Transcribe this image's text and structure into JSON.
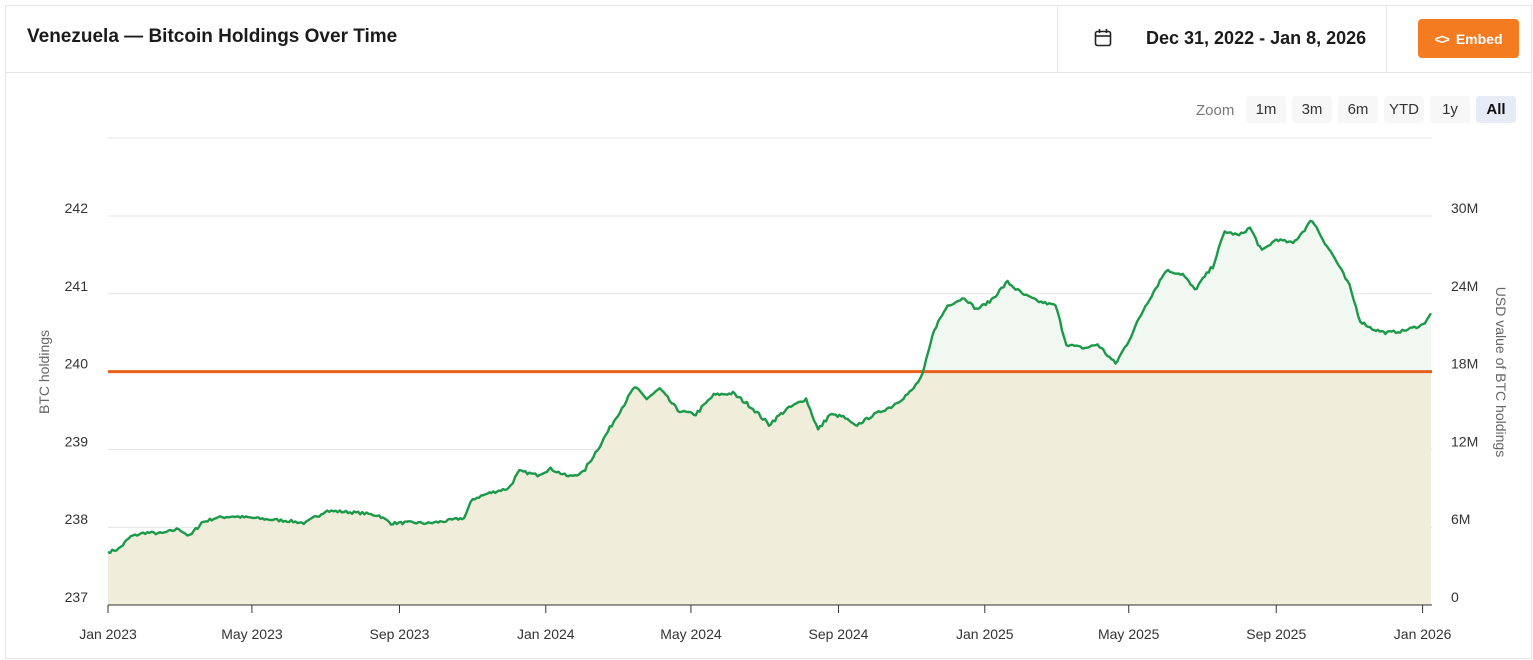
{
  "header": {
    "title": "Venezuela — Bitcoin Holdings Over Time",
    "date_range": "Dec 31, 2022 - Jan 8, 2026",
    "embed_label": "Embed",
    "calendar_icon": "calendar-icon",
    "embed_icon": "code-icon"
  },
  "zoom": {
    "label": "Zoom",
    "options": [
      "1m",
      "3m",
      "6m",
      "YTD",
      "1y",
      "All"
    ],
    "active": "All"
  },
  "colors": {
    "accent": "#f47b20",
    "line": "#1a9a48",
    "threshold": "#e8601c",
    "fill_below": "#fdf3e4",
    "fill_above": "#f1f7f1"
  },
  "chart_data": {
    "type": "line",
    "ylabel": "BTC holdings",
    "y2label": "USD value of BTC holdings",
    "ylim": [
      237,
      242
    ],
    "yticks": [
      "237",
      "238",
      "239",
      "240",
      "241",
      "242"
    ],
    "y2ticks": [
      "0",
      "6M",
      "12M",
      "18M",
      "24M",
      "30M"
    ],
    "xticks": [
      "Jan 2023",
      "May 2023",
      "Sep 2023",
      "Jan 2024",
      "May 2024",
      "Sep 2024",
      "Jan 2025",
      "May 2025",
      "Sep 2025",
      "Jan 2026"
    ],
    "threshold": 240,
    "grid": true,
    "series": [
      {
        "values": [
          [
            "2023-01-01",
            237.68
          ],
          [
            "2023-01-10",
            237.72
          ],
          [
            "2023-01-20",
            237.88
          ],
          [
            "2023-02-01",
            237.93
          ],
          [
            "2023-02-15",
            237.92
          ],
          [
            "2023-03-01",
            237.98
          ],
          [
            "2023-03-10",
            237.88
          ],
          [
            "2023-03-20",
            238.06
          ],
          [
            "2023-04-01",
            238.12
          ],
          [
            "2023-04-15",
            238.14
          ],
          [
            "2023-05-01",
            238.12
          ],
          [
            "2023-05-15",
            238.1
          ],
          [
            "2023-06-01",
            238.08
          ],
          [
            "2023-06-15",
            238.05
          ],
          [
            "2023-07-01",
            238.21
          ],
          [
            "2023-07-15",
            238.2
          ],
          [
            "2023-08-01",
            238.18
          ],
          [
            "2023-08-15",
            238.15
          ],
          [
            "2023-08-25",
            238.05
          ],
          [
            "2023-09-10",
            238.06
          ],
          [
            "2023-09-25",
            238.05
          ],
          [
            "2023-10-10",
            238.08
          ],
          [
            "2023-10-25",
            238.12
          ],
          [
            "2023-11-01",
            238.36
          ],
          [
            "2023-11-15",
            238.44
          ],
          [
            "2023-12-01",
            238.5
          ],
          [
            "2023-12-10",
            238.72
          ],
          [
            "2023-12-25",
            238.67
          ],
          [
            "2024-01-05",
            238.75
          ],
          [
            "2024-01-20",
            238.65
          ],
          [
            "2024-02-01",
            238.7
          ],
          [
            "2024-02-15",
            239.05
          ],
          [
            "2024-03-01",
            239.45
          ],
          [
            "2024-03-15",
            239.8
          ],
          [
            "2024-03-25",
            239.65
          ],
          [
            "2024-04-05",
            239.78
          ],
          [
            "2024-04-20",
            239.5
          ],
          [
            "2024-05-05",
            239.45
          ],
          [
            "2024-05-20",
            239.7
          ],
          [
            "2024-06-05",
            239.72
          ],
          [
            "2024-06-20",
            239.55
          ],
          [
            "2024-07-05",
            239.32
          ],
          [
            "2024-07-20",
            239.52
          ],
          [
            "2024-08-05",
            239.65
          ],
          [
            "2024-08-15",
            239.25
          ],
          [
            "2024-08-25",
            239.45
          ],
          [
            "2024-09-05",
            239.42
          ],
          [
            "2024-09-15",
            239.3
          ],
          [
            "2024-10-01",
            239.45
          ],
          [
            "2024-10-15",
            239.55
          ],
          [
            "2024-11-01",
            239.75
          ],
          [
            "2024-11-10",
            239.95
          ],
          [
            "2024-11-20",
            240.55
          ],
          [
            "2024-12-01",
            240.85
          ],
          [
            "2024-12-15",
            240.95
          ],
          [
            "2024-12-25",
            240.8
          ],
          [
            "2025-01-05",
            240.9
          ],
          [
            "2025-01-20",
            241.15
          ],
          [
            "2025-02-01",
            241.0
          ],
          [
            "2025-02-15",
            240.9
          ],
          [
            "2025-03-01",
            240.85
          ],
          [
            "2025-03-10",
            240.35
          ],
          [
            "2025-03-25",
            240.3
          ],
          [
            "2025-04-05",
            240.35
          ],
          [
            "2025-04-20",
            240.1
          ],
          [
            "2025-05-01",
            240.4
          ],
          [
            "2025-05-15",
            240.85
          ],
          [
            "2025-06-01",
            241.3
          ],
          [
            "2025-06-15",
            241.25
          ],
          [
            "2025-06-25",
            241.05
          ],
          [
            "2025-07-10",
            241.35
          ],
          [
            "2025-07-20",
            241.8
          ],
          [
            "2025-08-01",
            241.75
          ],
          [
            "2025-08-10",
            241.85
          ],
          [
            "2025-08-20",
            241.55
          ],
          [
            "2025-09-01",
            241.7
          ],
          [
            "2025-09-15",
            241.65
          ],
          [
            "2025-10-01",
            241.95
          ],
          [
            "2025-10-10",
            241.7
          ],
          [
            "2025-10-20",
            241.45
          ],
          [
            "2025-11-01",
            241.1
          ],
          [
            "2025-11-10",
            240.65
          ],
          [
            "2025-11-20",
            240.55
          ],
          [
            "2025-12-01",
            240.5
          ],
          [
            "2025-12-15",
            240.52
          ],
          [
            "2026-01-01",
            240.6
          ],
          [
            "2026-01-08",
            240.75
          ]
        ]
      }
    ]
  }
}
